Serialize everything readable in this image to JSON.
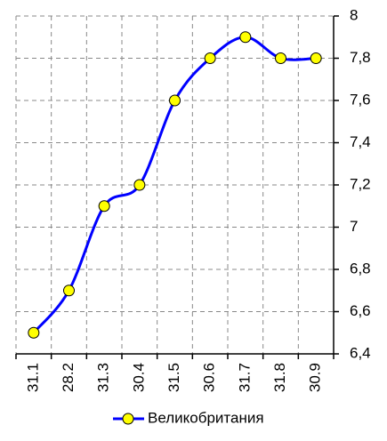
{
  "chart_data": {
    "type": "line",
    "categories": [
      "31.1",
      "28.2",
      "31.3",
      "30.4",
      "31.5",
      "30.6",
      "31.7",
      "31.8",
      "30.9"
    ],
    "series": [
      {
        "name": "Великобритания",
        "color": "#0000ff",
        "marker_color": "#ffff00",
        "values": [
          6.5,
          6.7,
          7.1,
          7.2,
          7.6,
          7.8,
          7.9,
          7.8,
          7.8
        ]
      }
    ],
    "ylim": [
      6.4,
      8
    ],
    "yticks": [
      {
        "value": 6.4,
        "label": "6,4"
      },
      {
        "value": 6.6,
        "label": "6,6"
      },
      {
        "value": 6.8,
        "label": "6,8"
      },
      7,
      {
        "value": 7.2,
        "label": "7,2"
      },
      {
        "value": 7.4,
        "label": "7,4"
      },
      {
        "value": 7.6,
        "label": "7,6"
      },
      {
        "value": 7.8,
        "label": "7,8"
      },
      8
    ],
    "grid": true,
    "legend": "bottom"
  }
}
